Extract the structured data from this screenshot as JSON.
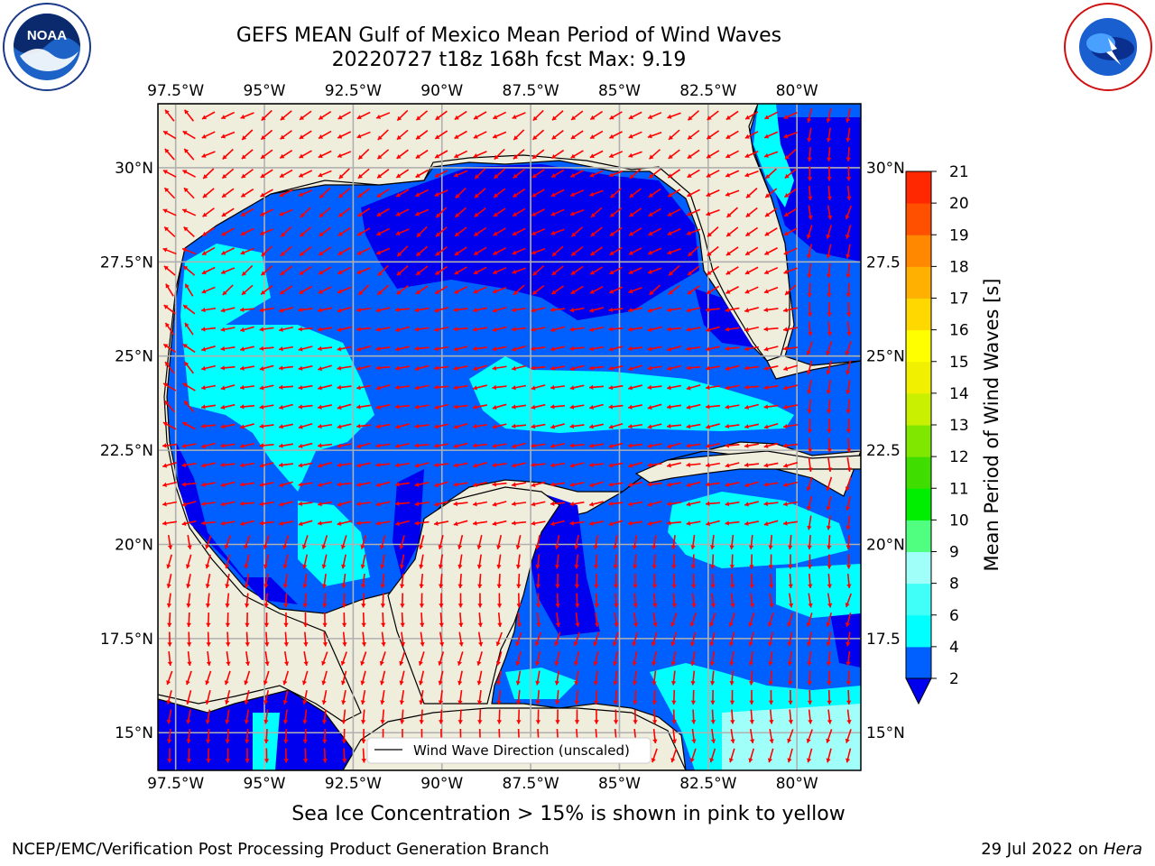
{
  "title": {
    "line1": "GEFS MEAN Gulf of Mexico Mean Period of Wind Waves",
    "line2": "20220727 t18z 168h fcst   Max: 9.19"
  },
  "logos": {
    "left_icon": "noaa-logo",
    "right_icon": "nws-logo"
  },
  "map": {
    "lon_top_labels": [
      "97.5°W",
      "95°W",
      "92.5°W",
      "90°W",
      "87.5°W",
      "85°W",
      "82.5°W",
      "80°W"
    ],
    "lon_bottom_labels": [
      "97.5°W",
      "95°W",
      "92.5°W",
      "90°W",
      "87.5°W",
      "85°W",
      "82.5°W",
      "80°W"
    ],
    "lat_left_labels": [
      "30°N",
      "27.5°N",
      "25°N",
      "22.5°N",
      "20°N",
      "17.5°N",
      "15°N"
    ],
    "lat_right_labels": [
      "30°N",
      "27.5",
      "25°N",
      "22.5",
      "20°N",
      "17.5",
      "15°N"
    ],
    "lon_range": [
      -98,
      -78.2
    ],
    "lat_range": [
      14.0,
      31.7
    ],
    "colors": {
      "land": "#efeddc",
      "level_2_4": "#0060ff",
      "level_below_2": "#0000ee",
      "level_4_6": "#00ffff",
      "level_6_8": "#7ffff0",
      "arrow": "#ff0000",
      "grid": "#b0b0b0"
    },
    "legend_label": "Wind Wave Direction (unscaled)"
  },
  "colorbar": {
    "title": "Mean Period of Wind Waves [s]",
    "ticks": [
      "2",
      "4",
      "6",
      "8",
      "9",
      "10",
      "11",
      "12",
      "13",
      "14",
      "15",
      "16",
      "17",
      "18",
      "19",
      "20",
      "21"
    ],
    "colors": [
      "#0060ff",
      "#00ffff",
      "#40fff8",
      "#a0fff8",
      "#50ff80",
      "#00ee00",
      "#40dd00",
      "#80e800",
      "#c8f000",
      "#f0f000",
      "#ffff00",
      "#ffd800",
      "#ffb000",
      "#ff8800",
      "#ff5000",
      "#ff2800",
      "#ff0000"
    ],
    "under_color": "#0000ee"
  },
  "subnote": "Sea Ice Concentration > 15% is shown in pink to yellow",
  "footer": {
    "left": "NCEP/EMC/Verification Post Processing Product Generation Branch",
    "right_date": "29 Jul 2022 on",
    "right_host": "Hera"
  }
}
